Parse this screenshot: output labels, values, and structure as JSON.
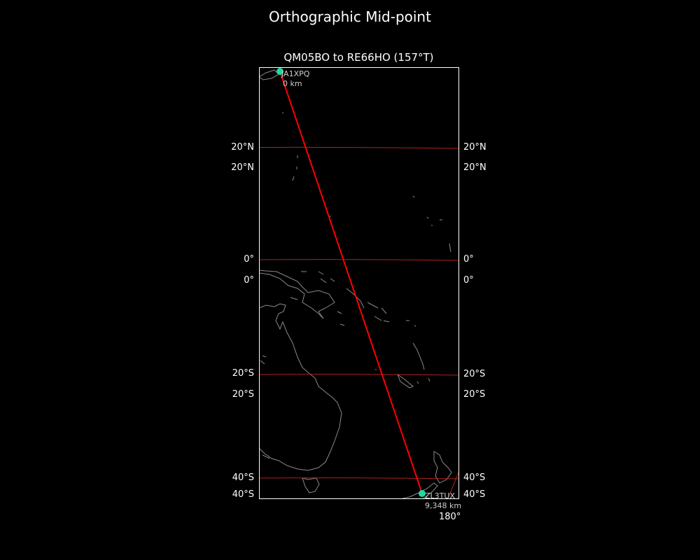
{
  "figure_title": "Orthographic Mid-point",
  "map_title": "QM05BO to RE66HO (157°T)",
  "lat_labels_left": [
    "20°N",
    "20°N",
    "0°",
    "0°",
    "20°S",
    "20°S",
    "40°S",
    "40°S"
  ],
  "lat_labels_right": [
    "20°N",
    "20°N",
    "0°",
    "0°",
    "20°S",
    "20°S",
    "40°S",
    "40°S"
  ],
  "lon_label": "180°",
  "start": {
    "call": "JA1XPQ",
    "distance": "0 km",
    "grid": "QM05BO"
  },
  "end": {
    "call": "ZL3TUX",
    "distance": "9,348 km",
    "grid": "RE66HO"
  },
  "bearing": "157°T",
  "colors": {
    "background": "#000000",
    "path": "#ff0000",
    "station": "#20d8a0",
    "coast": "#8a8a8a",
    "gridline": "#b02020",
    "frame": "#ffffff"
  }
}
